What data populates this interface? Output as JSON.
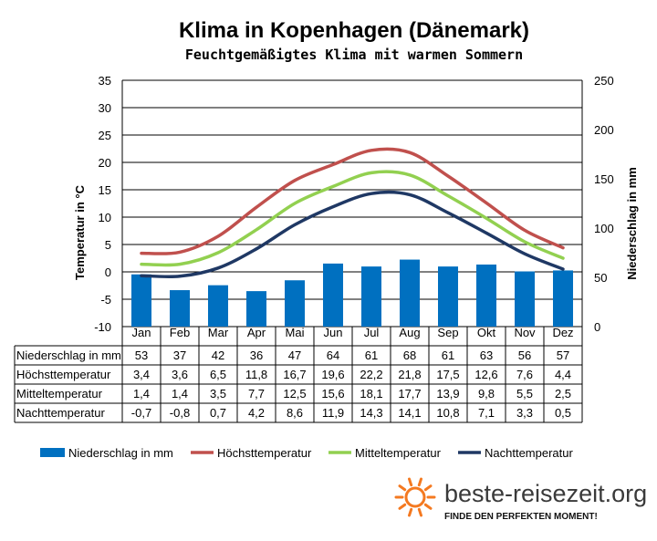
{
  "title": "Klima in Kopenhagen (Dänemark)",
  "subtitle": "Feuchtgemäßigtes Klima mit warmen Sommern",
  "brand": {
    "name": "beste-reisezeit.org",
    "slogan": "FINDE DEN PERFEKTEN MOMENT!",
    "sun_color": "#f47920"
  },
  "chart_data": {
    "type": "bar",
    "categories": [
      "Jan",
      "Feb",
      "Mar",
      "Apr",
      "Mai",
      "Jun",
      "Jul",
      "Aug",
      "Sep",
      "Okt",
      "Nov",
      "Dez"
    ],
    "left_axis": {
      "label": "Temperatur in °C",
      "ylim": [
        -10,
        35
      ],
      "ticks": [
        "-10",
        "-5",
        "0",
        "5",
        "10",
        "15",
        "20",
        "25",
        "30",
        "35"
      ]
    },
    "right_axis": {
      "label": "Niederschlag in mm",
      "ylim": [
        0,
        250
      ],
      "ticks": [
        "0",
        "50",
        "100",
        "150",
        "200",
        "250"
      ]
    },
    "grid": true,
    "legend_position": "bottom",
    "series": [
      {
        "name": "Niederschlag in mm",
        "kind": "bar",
        "axis": "right",
        "color": "#0070c0",
        "values": [
          53,
          37,
          42,
          36,
          47,
          64,
          61,
          68,
          61,
          63,
          56,
          57
        ],
        "labels": [
          "53",
          "37",
          "42",
          "36",
          "47",
          "64",
          "61",
          "68",
          "61",
          "63",
          "56",
          "57"
        ]
      },
      {
        "name": "Höchsttemperatur",
        "kind": "line",
        "axis": "left",
        "color": "#c0504d",
        "values": [
          3.4,
          3.6,
          6.5,
          11.8,
          16.7,
          19.6,
          22.2,
          21.8,
          17.5,
          12.6,
          7.6,
          4.4
        ],
        "labels": [
          "3,4",
          "3,6",
          "6,5",
          "11,8",
          "16,7",
          "19,6",
          "22,2",
          "21,8",
          "17,5",
          "12,6",
          "7,6",
          "4,4"
        ]
      },
      {
        "name": "Mitteltemperatur",
        "kind": "line",
        "axis": "left",
        "color": "#92d050",
        "values": [
          1.4,
          1.4,
          3.5,
          7.7,
          12.5,
          15.6,
          18.1,
          17.7,
          13.9,
          9.8,
          5.5,
          2.5
        ],
        "labels": [
          "1,4",
          "1,4",
          "3,5",
          "7,7",
          "12,5",
          "15,6",
          "18,1",
          "17,7",
          "13,9",
          "9,8",
          "5,5",
          "2,5"
        ]
      },
      {
        "name": "Nachttemperatur",
        "kind": "line",
        "axis": "left",
        "color": "#1f3864",
        "values": [
          -0.7,
          -0.8,
          0.7,
          4.2,
          8.6,
          11.9,
          14.3,
          14.1,
          10.8,
          7.1,
          3.3,
          0.5
        ],
        "labels": [
          "-0,7",
          "-0,8",
          "0,7",
          "4,2",
          "8,6",
          "11,9",
          "14,3",
          "14,1",
          "10,8",
          "7,1",
          "3,3",
          "0,5"
        ]
      }
    ]
  }
}
